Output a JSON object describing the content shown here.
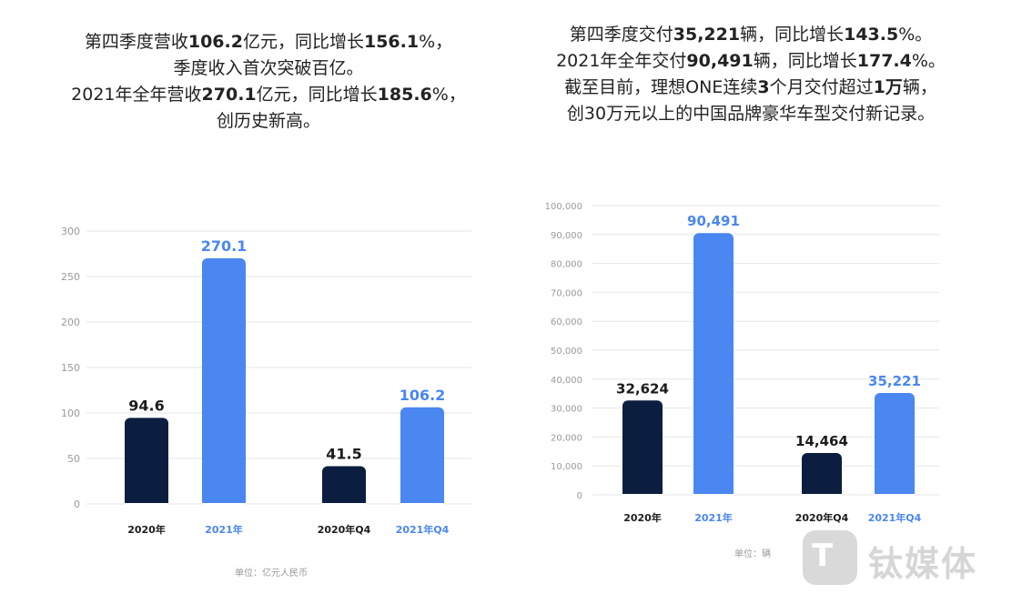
{
  "left_text": {
    "lines": [
      [
        {
          "t": "第四季度营收"
        },
        {
          "t": "106.2",
          "b": true
        },
        {
          "t": "亿元，同比增长"
        },
        {
          "t": "156.1",
          "b": true
        },
        {
          "t": "%，"
        }
      ],
      [
        {
          "t": "季度收入首次突破百亿。"
        }
      ],
      [
        {
          "t": "2021年全年营收"
        },
        {
          "t": "270.1",
          "b": true
        },
        {
          "t": "亿元，同比增长"
        },
        {
          "t": "185.6",
          "b": true
        },
        {
          "t": "%，"
        }
      ],
      [
        {
          "t": "创历史新高。"
        }
      ]
    ]
  },
  "right_text": {
    "lines": [
      [
        {
          "t": "第四季度交付"
        },
        {
          "t": "35,221",
          "b": true
        },
        {
          "t": "辆，同比增长"
        },
        {
          "t": "143.5",
          "b": true
        },
        {
          "t": "%。"
        }
      ],
      [
        {
          "t": "2021年全年交付"
        },
        {
          "t": "90,491",
          "b": true
        },
        {
          "t": "辆，同比增长"
        },
        {
          "t": "177.4",
          "b": true
        },
        {
          "t": "%。"
        }
      ],
      [
        {
          "t": "截至目前，理想ONE连续"
        },
        {
          "t": "3",
          "b": true
        },
        {
          "t": "个月交付超过"
        },
        {
          "t": "1万",
          "b": true
        },
        {
          "t": "辆，"
        }
      ],
      [
        {
          "t": "创30万元以上的中国品牌豪华车型交付新记录。"
        }
      ]
    ]
  },
  "chart_data": [
    {
      "type": "bar",
      "categories": [
        "2020年",
        "2021年",
        "2020年Q4",
        "2021年Q4"
      ],
      "values": [
        94.6,
        270.1,
        41.5,
        106.2
      ],
      "value_labels": [
        "94.6",
        "270.1",
        "41.5",
        "106.2"
      ],
      "bar_colors": [
        "#0b1e40",
        "#4a87f0",
        "#0b1e40",
        "#4a87f0"
      ],
      "ylim": [
        0,
        300
      ],
      "yticks": [
        "0",
        "50",
        "100",
        "150",
        "200",
        "250",
        "300"
      ],
      "grid": true,
      "unit_note": "单位：亿元人民币",
      "title": "",
      "xlabel": "",
      "ylabel": ""
    },
    {
      "type": "bar",
      "categories": [
        "2020年",
        "2021年",
        "2020年Q4",
        "2021年Q4"
      ],
      "values": [
        32624,
        90491,
        14464,
        35221
      ],
      "value_labels": [
        "32,624",
        "90,491",
        "14,464",
        "35,221"
      ],
      "bar_colors": [
        "#0b1e40",
        "#4a87f0",
        "#0b1e40",
        "#4a87f0"
      ],
      "ylim": [
        0,
        100000
      ],
      "yticks": [
        "0",
        "10,000",
        "20,000",
        "30,000",
        "40,000",
        "50,000",
        "60,000",
        "70,000",
        "80,000",
        "90,000",
        "100,000"
      ],
      "grid": true,
      "unit_note": "单位：辆",
      "title": "",
      "xlabel": "",
      "ylabel": ""
    }
  ],
  "watermark": {
    "mark": "T",
    "text": "钛媒体"
  },
  "colors": {
    "dark_bar": "#0b1e40",
    "blue_bar": "#4a87f0",
    "grid": "#e6e6e6",
    "axis_text": "#999999"
  }
}
